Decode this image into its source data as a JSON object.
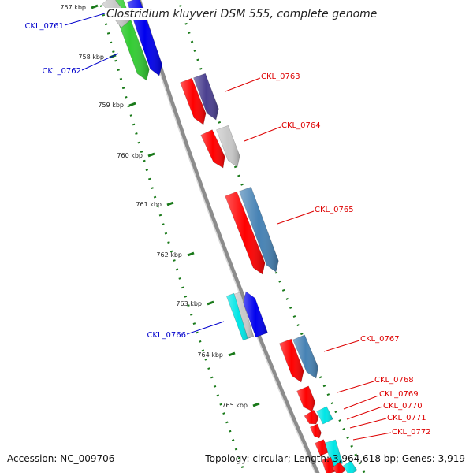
{
  "title": "Clostridium kluyveri DSM 555, complete genome",
  "footer": {
    "accession": "Accession: NC_009706",
    "summary": "Topology: circular; Length: 3,964,618 bp; Genes: 3,919"
  },
  "ticks": [
    "757 kbp",
    "758 kbp",
    "759 kbp",
    "760 kbp",
    "761 kbp",
    "762 kbp",
    "763 kbp",
    "764 kbp",
    "765 kbp"
  ],
  "genes": [
    {
      "label": "CKL_0761",
      "color": "#0000cc"
    },
    {
      "label": "CKL_0762",
      "color": "#0000cc"
    },
    {
      "label": "CKL_0763",
      "color": "#dd0000"
    },
    {
      "label": "CKL_0764",
      "color": "#dd0000"
    },
    {
      "label": "CKL_0765",
      "color": "#dd0000"
    },
    {
      "label": "CKL_0766",
      "color": "#0000cc"
    },
    {
      "label": "CKL_0767",
      "color": "#dd0000"
    },
    {
      "label": "CKL_0768",
      "color": "#dd0000"
    },
    {
      "label": "CKL_0769",
      "color": "#dd0000"
    },
    {
      "label": "CKL_0770",
      "color": "#dd0000"
    },
    {
      "label": "CKL_0771",
      "color": "#dd0000"
    },
    {
      "label": "CKL_0772",
      "color": "#dd0000"
    }
  ],
  "colors": {
    "backbone": "#8c8c8c",
    "tick": "#1a7a1a",
    "dots": "#1a7a1a",
    "cds_red": "#ff0000",
    "green": "#33cc33",
    "blue": "#0000ee",
    "purple": "#4a3f8f",
    "grey": "#c8c8c8",
    "steel": "#4682b4",
    "cyan": "#00e6e6"
  }
}
